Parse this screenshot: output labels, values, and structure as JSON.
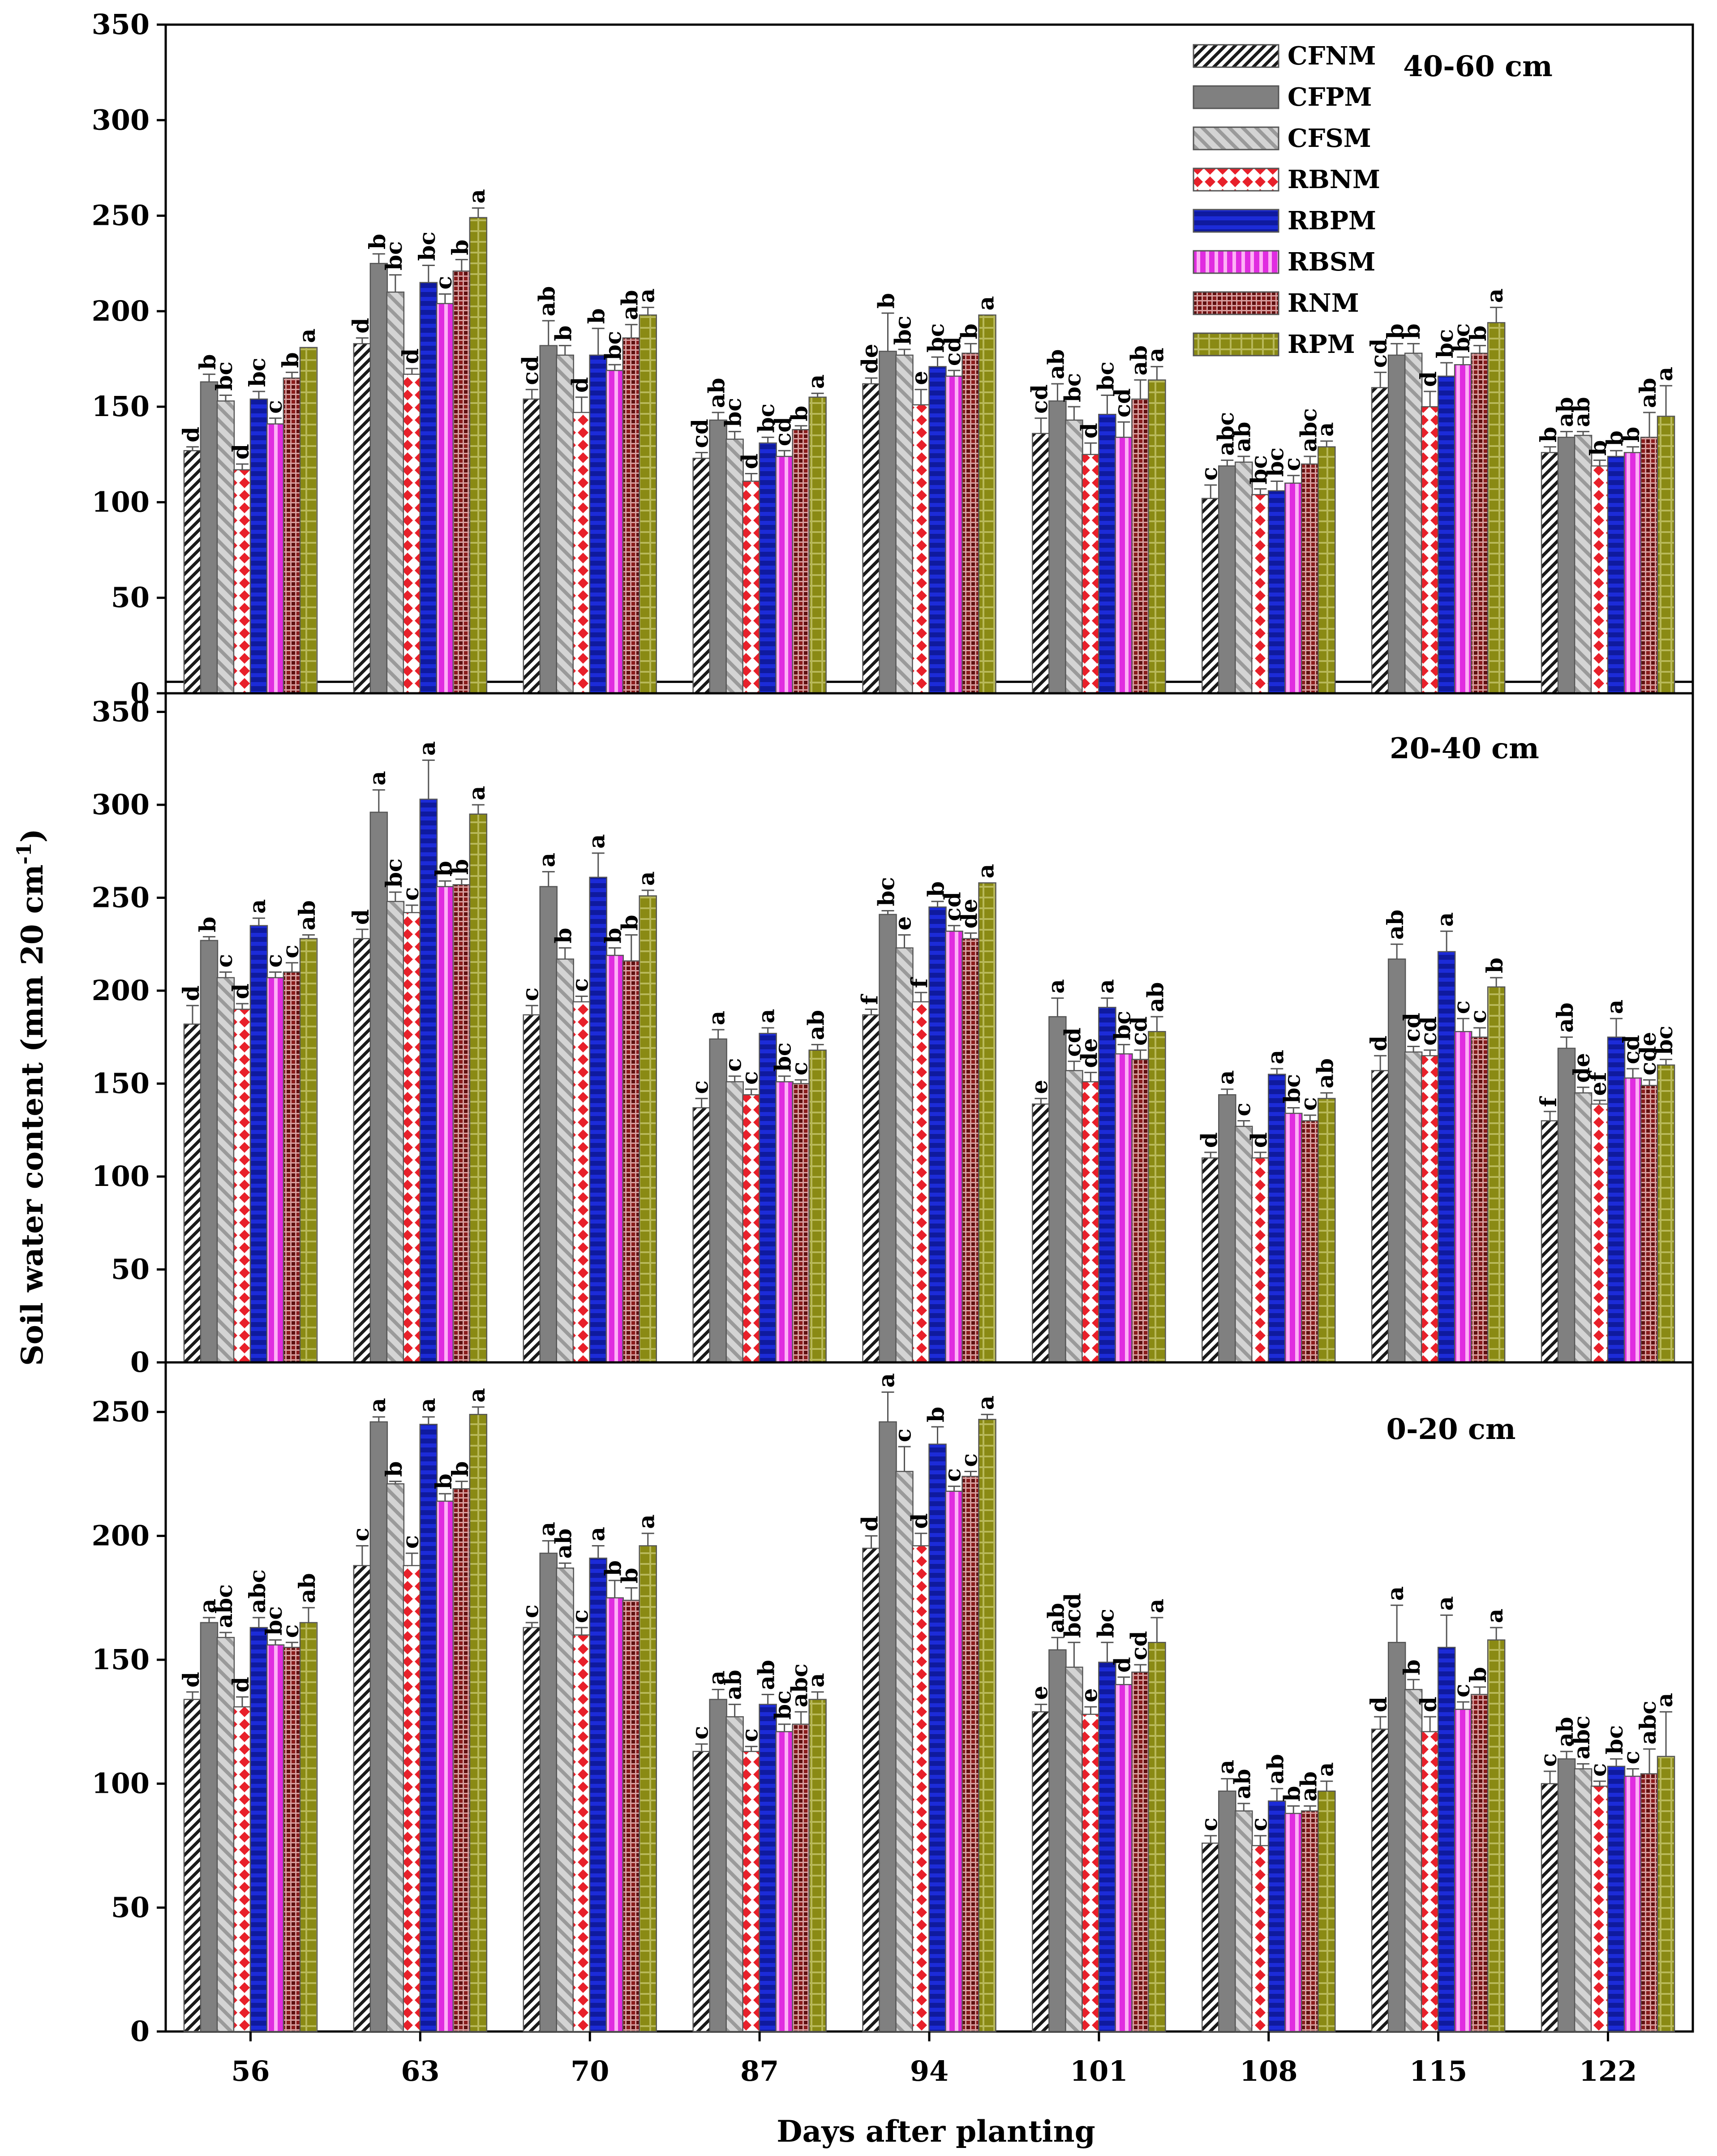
{
  "chart_data": {
    "type": "bar",
    "ylabel": "Soil water content (mm 20 cm",
    "ylabel_sup": "-1",
    "ylabel_close": ")",
    "xlabel": "Days after planting",
    "categories": [
      "56",
      "63",
      "70",
      "87",
      "94",
      "101",
      "108",
      "115",
      "122"
    ],
    "series_names": [
      "CFNM",
      "CFPM",
      "CFSM",
      "RBNM",
      "RBPM",
      "RBSM",
      "RNM",
      "RPM"
    ],
    "series_colors": [
      "#1a1a1a",
      "#808080",
      "#c8c8c8",
      "#e8202a",
      "#1c2bd8",
      "#e02ce0",
      "#8a1c1c",
      "#8a8a14"
    ],
    "panels": [
      {
        "title": "40-60 cm",
        "ylim": [
          0,
          350
        ],
        "yticks": [
          0,
          50,
          100,
          150,
          200,
          250,
          300,
          350
        ],
        "reference_line": 6,
        "series": [
          {
            "name": "CFNM",
            "values": [
              127,
              183,
              154,
              123,
              162,
              136,
              102,
              160,
              126
            ],
            "errors": [
              2,
              3,
              5,
              3,
              3,
              8,
              7,
              8,
              3
            ],
            "letters": [
              "d",
              "d",
              "cd",
              "cd",
              "de",
              "cd",
              "c",
              "cd",
              "b"
            ]
          },
          {
            "name": "CFPM",
            "values": [
              163,
              225,
              182,
              143,
              179,
              153,
              119,
              177,
              134
            ],
            "errors": [
              4,
              5,
              13,
              4,
              20,
              9,
              3,
              6,
              3
            ],
            "letters": [
              "b",
              "b",
              "ab",
              "ab",
              "b",
              "ab",
              "abc",
              "b",
              "ab"
            ]
          },
          {
            "name": "CFSM",
            "values": [
              153,
              210,
              177,
              133,
              177,
              143,
              121,
              178,
              135
            ],
            "errors": [
              3,
              9,
              5,
              4,
              3,
              7,
              3,
              5,
              2
            ],
            "letters": [
              "bc",
              "bc",
              "b",
              "bc",
              "bc",
              "bc",
              "ab",
              "b",
              "ab"
            ]
          },
          {
            "name": "RBNM",
            "values": [
              117,
              167,
              147,
              111,
              151,
              125,
              104,
              150,
              119
            ],
            "errors": [
              3,
              3,
              8,
              4,
              8,
              6,
              3,
              8,
              3
            ],
            "letters": [
              "d",
              "d",
              "d",
              "d",
              "e",
              "d",
              "bc",
              "d",
              "b"
            ]
          },
          {
            "name": "RBPM",
            "values": [
              154,
              215,
              177,
              131,
              171,
              146,
              106,
              166,
              124
            ],
            "errors": [
              4,
              9,
              14,
              3,
              5,
              10,
              5,
              7,
              3
            ],
            "letters": [
              "bc",
              "bc",
              "b",
              "bc",
              "bc",
              "bc",
              "bc",
              "bc",
              "b"
            ]
          },
          {
            "name": "RBSM",
            "values": [
              141,
              204,
              169,
              124,
              166,
              134,
              110,
              172,
              126
            ],
            "errors": [
              3,
              5,
              3,
              3,
              3,
              8,
              4,
              4,
              3
            ],
            "letters": [
              "c",
              "c",
              "bc",
              "cd",
              "cd",
              "cd",
              "c",
              "bc",
              "b"
            ]
          },
          {
            "name": "RNM",
            "values": [
              165,
              221,
              186,
              138,
              178,
              154,
              120,
              178,
              134
            ],
            "errors": [
              3,
              6,
              7,
              2,
              5,
              10,
              4,
              4,
              13
            ],
            "letters": [
              "b",
              "b",
              "ab",
              "b",
              "b",
              "ab",
              "abc",
              "b",
              "ab"
            ]
          },
          {
            "name": "RPM",
            "values": [
              181,
              249,
              198,
              155,
              198,
              164,
              129,
              194,
              145
            ],
            "errors": [
              0,
              5,
              4,
              2,
              0,
              7,
              3,
              8,
              16
            ],
            "letters": [
              "a",
              "a",
              "a",
              "a",
              "a",
              "a",
              "a",
              "a",
              "a"
            ]
          }
        ]
      },
      {
        "title": "20-40 cm",
        "ylim": [
          0,
          360
        ],
        "yticks": [
          0,
          50,
          100,
          150,
          200,
          250,
          300,
          350
        ],
        "series": [
          {
            "name": "CFNM",
            "values": [
              182,
              228,
              187,
              137,
              187,
              139,
              110,
              157,
              130
            ],
            "errors": [
              10,
              5,
              5,
              5,
              3,
              3,
              3,
              8,
              5
            ],
            "letters": [
              "d",
              "d",
              "c",
              "c",
              "f",
              "e",
              "d",
              "d",
              "f"
            ]
          },
          {
            "name": "CFPM",
            "values": [
              227,
              296,
              256,
              174,
              241,
              186,
              144,
              217,
              169
            ],
            "errors": [
              2,
              12,
              8,
              5,
              2,
              10,
              3,
              8,
              6
            ],
            "letters": [
              "b",
              "a",
              "a",
              "a",
              "bc",
              "a",
              "a",
              "ab",
              "ab"
            ]
          },
          {
            "name": "CFSM",
            "values": [
              207,
              248,
              217,
              151,
              223,
              157,
              127,
              167,
              145
            ],
            "errors": [
              3,
              5,
              6,
              3,
              7,
              5,
              3,
              3,
              3
            ],
            "letters": [
              "c",
              "bc",
              "b",
              "c",
              "e",
              "cd",
              "c",
              "cd",
              "de"
            ]
          },
          {
            "name": "RBNM",
            "values": [
              190,
              242,
              194,
              144,
              194,
              151,
              110,
              165,
              139
            ],
            "errors": [
              3,
              4,
              3,
              3,
              5,
              5,
              3,
              3,
              2
            ],
            "letters": [
              "d",
              "c",
              "c",
              "c",
              "f",
              "de",
              "d",
              "cd",
              "ef"
            ]
          },
          {
            "name": "RBPM",
            "values": [
              235,
              303,
              261,
              177,
              245,
              191,
              155,
              221,
              175
            ],
            "errors": [
              4,
              21,
              13,
              3,
              3,
              5,
              3,
              11,
              10
            ],
            "letters": [
              "a",
              "a",
              "a",
              "a",
              "b",
              "a",
              "a",
              "a",
              "a"
            ]
          },
          {
            "name": "RBSM",
            "values": [
              207,
              256,
              219,
              151,
              232,
              166,
              134,
              178,
              153
            ],
            "errors": [
              3,
              3,
              4,
              3,
              3,
              5,
              3,
              7,
              5
            ],
            "letters": [
              "c",
              "b",
              "b",
              "bc",
              "cd",
              "bc",
              "bc",
              "c",
              "cd"
            ]
          },
          {
            "name": "RNM",
            "values": [
              210,
              257,
              216,
              150,
              228,
              163,
              130,
              175,
              149
            ],
            "errors": [
              5,
              3,
              14,
              2,
              3,
              5,
              3,
              5,
              3
            ],
            "letters": [
              "c",
              "b",
              "b",
              "c",
              "de",
              "cd",
              "c",
              "c",
              "cde"
            ]
          },
          {
            "name": "RPM",
            "values": [
              228,
              295,
              251,
              168,
              258,
              178,
              142,
              202,
              160
            ],
            "errors": [
              2,
              5,
              3,
              3,
              0,
              8,
              3,
              5,
              3
            ],
            "letters": [
              "ab",
              "a",
              "a",
              "ab",
              "a",
              "ab",
              "ab",
              "b",
              "bc"
            ]
          }
        ]
      },
      {
        "title": "0-20 cm",
        "ylim": [
          0,
          270
        ],
        "yticks": [
          0,
          50,
          100,
          150,
          200,
          250
        ],
        "series": [
          {
            "name": "CFNM",
            "values": [
              134,
              188,
              163,
              113,
              195,
              129,
              76,
              122,
              100
            ],
            "errors": [
              3,
              8,
              2,
              3,
              5,
              3,
              3,
              5,
              5
            ],
            "letters": [
              "d",
              "c",
              "c",
              "c",
              "d",
              "e",
              "c",
              "d",
              "c"
            ]
          },
          {
            "name": "CFPM",
            "values": [
              165,
              246,
              193,
              134,
              246,
              154,
              97,
              157,
              110
            ],
            "errors": [
              2,
              2,
              5,
              4,
              12,
              5,
              5,
              15,
              3
            ],
            "letters": [
              "a",
              "a",
              "a",
              "a",
              "a",
              "ab",
              "a",
              "a",
              "ab"
            ]
          },
          {
            "name": "CFSM",
            "values": [
              159,
              221,
              187,
              127,
              226,
              147,
              89,
              138,
              106
            ],
            "errors": [
              2,
              1,
              2,
              5,
              10,
              10,
              3,
              4,
              2
            ],
            "letters": [
              "abc",
              "b",
              "ab",
              "ab",
              "c",
              "bcd",
              "ab",
              "b",
              "abc"
            ]
          },
          {
            "name": "RBNM",
            "values": [
              131,
              188,
              160,
              113,
              196,
              128,
              75,
              121,
              99
            ],
            "errors": [
              4,
              5,
              3,
              2,
              5,
              3,
              4,
              6,
              2
            ],
            "letters": [
              "d",
              "c",
              "c",
              "c",
              "d",
              "e",
              "c",
              "d",
              "c"
            ]
          },
          {
            "name": "RBPM",
            "values": [
              163,
              245,
              191,
              132,
              237,
              149,
              93,
              155,
              107
            ],
            "errors": [
              4,
              3,
              5,
              4,
              7,
              8,
              5,
              13,
              3
            ],
            "letters": [
              "abc",
              "a",
              "a",
              "ab",
              "b",
              "bc",
              "ab",
              "a",
              "bc"
            ]
          },
          {
            "name": "RBSM",
            "values": [
              156,
              214,
              175,
              121,
              218,
              140,
              88,
              130,
              103
            ],
            "errors": [
              2,
              3,
              7,
              3,
              2,
              3,
              3,
              3,
              3
            ],
            "letters": [
              "bc",
              "b",
              "b",
              "bc",
              "c",
              "d",
              "b",
              "c",
              "c"
            ]
          },
          {
            "name": "RNM",
            "values": [
              155,
              219,
              174,
              124,
              224,
              145,
              89,
              136,
              104
            ],
            "errors": [
              2,
              3,
              5,
              5,
              2,
              3,
              2,
              3,
              10
            ],
            "letters": [
              "c",
              "b",
              "b",
              "abc",
              "c",
              "cd",
              "ab",
              "b",
              "abc"
            ]
          },
          {
            "name": "RPM",
            "values": [
              165,
              249,
              196,
              134,
              247,
              157,
              97,
              158,
              111
            ],
            "errors": [
              6,
              3,
              5,
              3,
              2,
              10,
              4,
              5,
              18
            ],
            "letters": [
              "ab",
              "a",
              "a",
              "a",
              "a",
              "a",
              "a",
              "a",
              "a"
            ]
          }
        ]
      }
    ]
  }
}
